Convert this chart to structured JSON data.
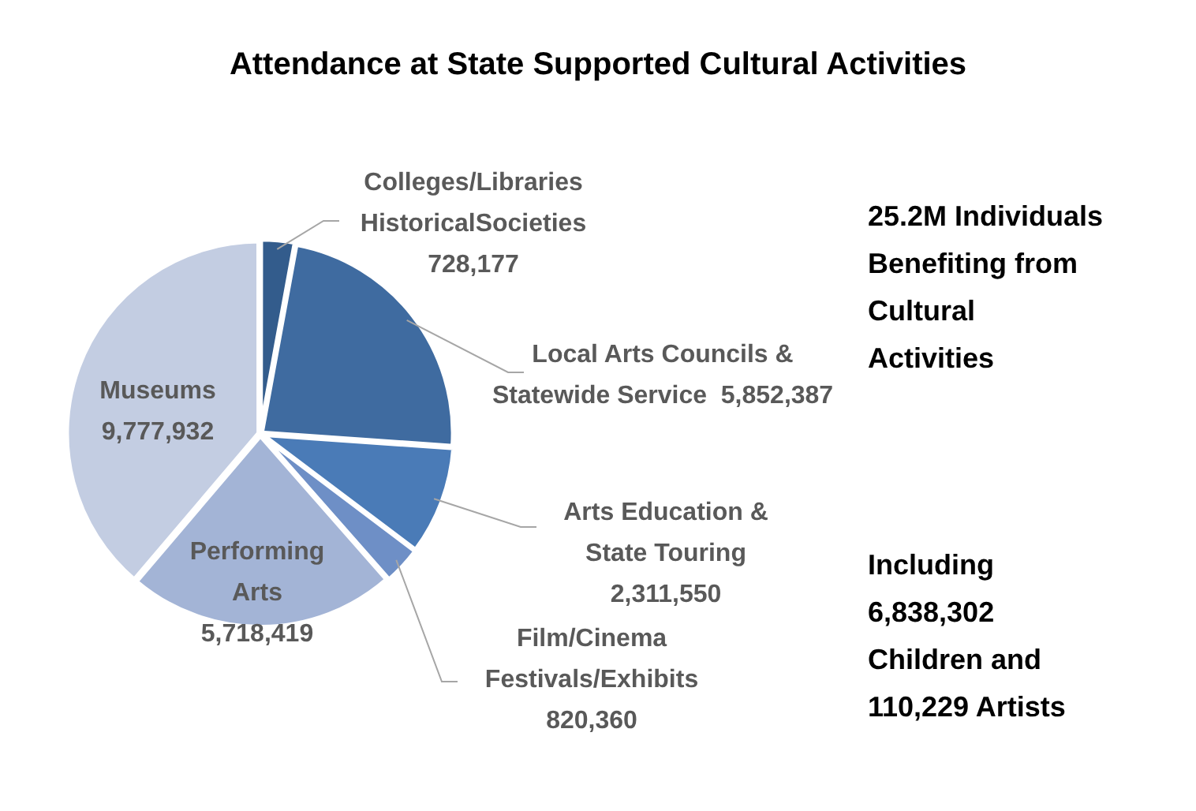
{
  "chart_data": {
    "type": "pie",
    "title": "Attendance at State Supported Cultural Activities",
    "categories": [
      "Colleges/Libraries HistoricalSocieties",
      "Local Arts Councils & Statewide Service",
      "Arts Education & State Touring",
      "Film/Cinema Festivals/Exhibits",
      "Performing Arts",
      "Museums"
    ],
    "values": [
      728177,
      5852387,
      2311550,
      820360,
      5718419,
      9777932
    ],
    "value_labels": [
      "728,177",
      "5,852,387",
      "2,311,550",
      "820,360",
      "5,718,419",
      "9,777,932"
    ],
    "colors": [
      "#335c8c",
      "#3f6ba0",
      "#4a7bb7",
      "#6e8fc6",
      "#a3b4d6",
      "#c3cde2"
    ],
    "legend": false,
    "annotations": [
      "25.2M Individuals Benefiting from Cultural Activities",
      "Including 6,838,302 Children and 110,229 Artists"
    ]
  }
}
